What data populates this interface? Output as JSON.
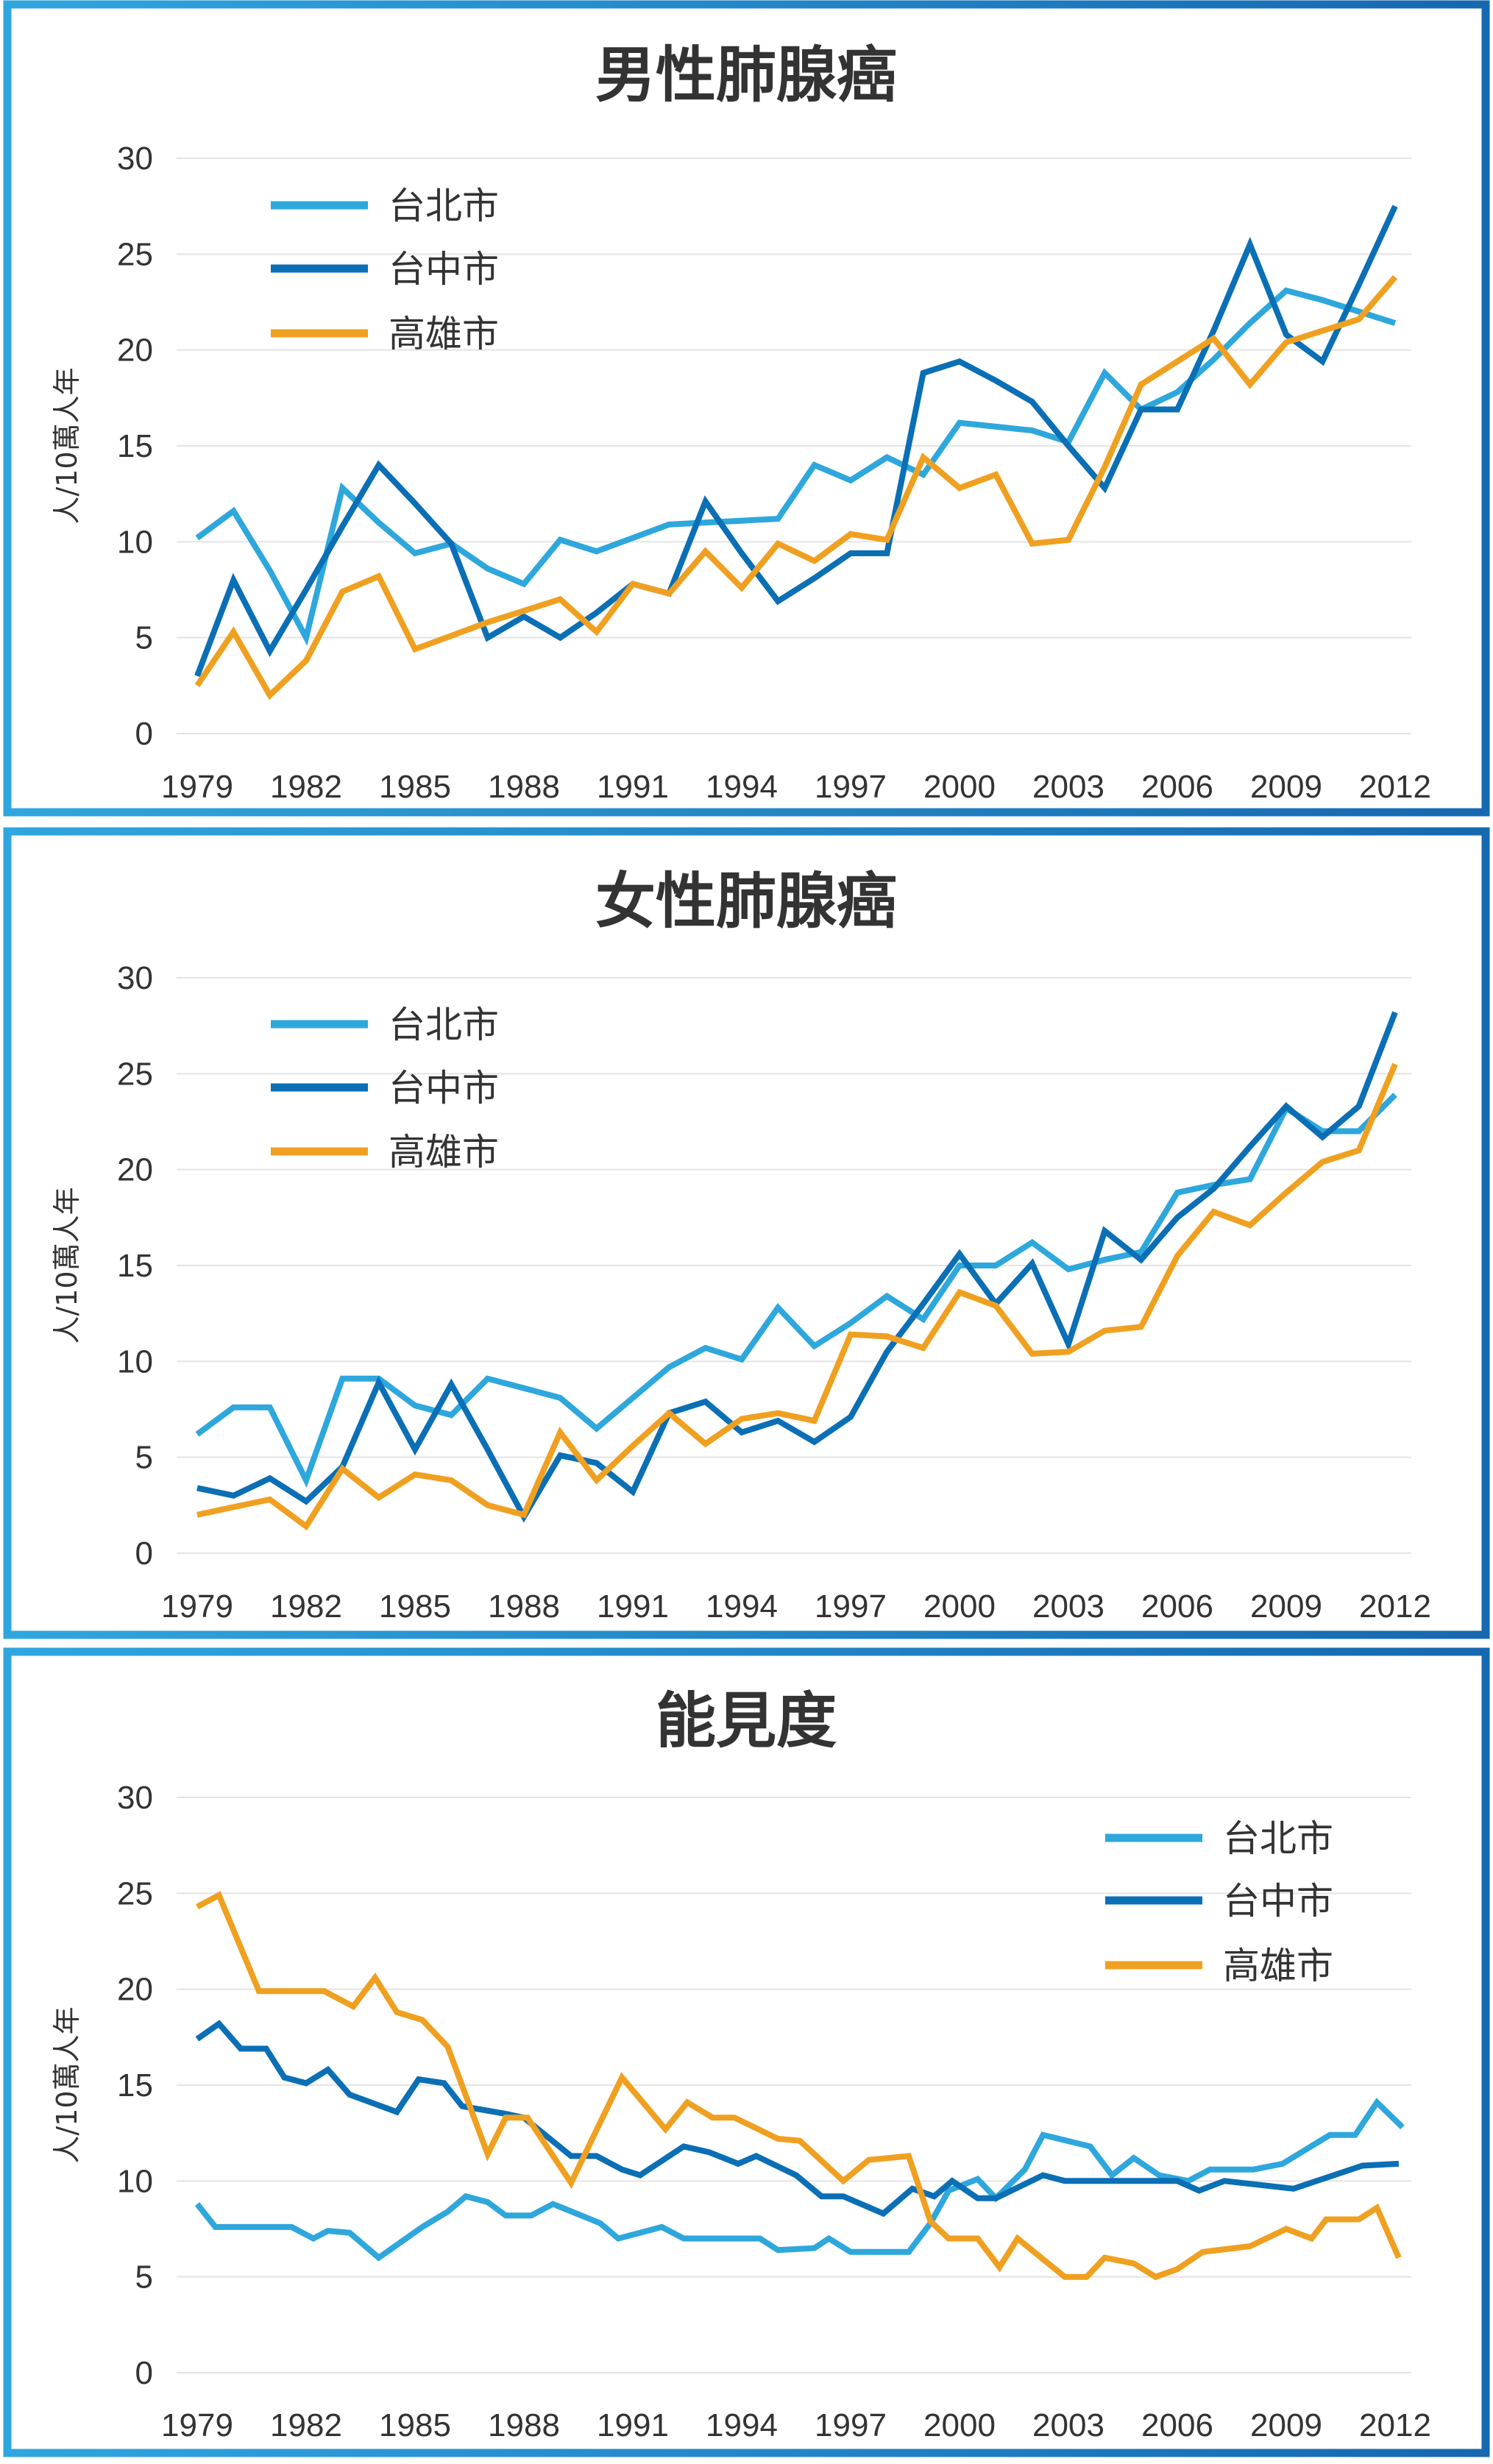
{
  "colors": {
    "taipei": "#2ea7dc",
    "taichung": "#0a6fb5",
    "kaohsiung": "#f0a020",
    "border_left": "#2fa6df",
    "border_right": "#1668b0"
  },
  "chart_data": [
    {
      "type": "line",
      "title": "男性肺腺癌",
      "ylabel": "人/10萬人年",
      "xlabel": "",
      "ylim": [
        0,
        30
      ],
      "yticks": [
        "0",
        "5",
        "10",
        "15",
        "20",
        "25",
        "30"
      ],
      "xticks": [
        "1979",
        "1982",
        "1985",
        "1988",
        "1991",
        "1994",
        "1997",
        "2000",
        "2003",
        "2006",
        "2009",
        "2012"
      ],
      "xlim": [
        1979,
        2012
      ],
      "grid": true,
      "legend": "top-left",
      "x": [
        1979,
        1980,
        1981,
        1982,
        1983,
        1984,
        1985,
        1986,
        1987,
        1988,
        1989,
        1990,
        1991,
        1992,
        1993,
        1994,
        1995,
        1996,
        1997,
        1998,
        1999,
        2000,
        2001,
        2002,
        2003,
        2004,
        2005,
        2006,
        2007,
        2008,
        2009,
        2010,
        2011,
        2012
      ],
      "series": [
        {
          "name": "台北市",
          "color": "#2ea7dc",
          "values": [
            10.2,
            11.6,
            8.5,
            5.0,
            12.8,
            11.0,
            9.4,
            9.9,
            8.6,
            7.8,
            10.1,
            9.5,
            10.2,
            10.9,
            11.0,
            11.1,
            11.2,
            14.0,
            13.2,
            14.4,
            13.5,
            16.2,
            16.0,
            15.8,
            15.2,
            18.8,
            16.9,
            17.8,
            19.5,
            21.4,
            23.1,
            22.6,
            22.0,
            21.4
          ]
        },
        {
          "name": "台中市",
          "color": "#0a6fb5",
          "values": [
            3.0,
            8.0,
            4.3,
            7.5,
            10.8,
            14.0,
            12.0,
            9.9,
            5.0,
            6.1,
            5.0,
            6.3,
            7.8,
            7.3,
            12.1,
            9.4,
            6.9,
            8.1,
            9.4,
            9.4,
            18.8,
            19.4,
            18.4,
            17.3,
            15.0,
            12.8,
            16.9,
            16.9,
            21.0,
            25.5,
            20.8,
            19.4,
            23.4,
            27.5
          ]
        },
        {
          "name": "高雄市",
          "color": "#f0a020",
          "values": [
            2.5,
            5.3,
            2.0,
            3.8,
            7.4,
            8.2,
            4.4,
            5.1,
            5.8,
            6.4,
            7.0,
            5.3,
            7.8,
            7.3,
            9.5,
            7.6,
            9.9,
            9.0,
            10.4,
            10.1,
            14.4,
            12.8,
            13.5,
            9.9,
            10.1,
            13.9,
            18.2,
            19.4,
            20.6,
            18.2,
            20.4,
            21.0,
            21.6,
            23.8
          ]
        }
      ]
    },
    {
      "type": "line",
      "title": "女性肺腺癌",
      "ylabel": "人/10萬人年",
      "xlabel": "",
      "ylim": [
        0,
        30
      ],
      "yticks": [
        "0",
        "5",
        "10",
        "15",
        "20",
        "25",
        "30"
      ],
      "xticks": [
        "1979",
        "1982",
        "1985",
        "1988",
        "1991",
        "1994",
        "1997",
        "2000",
        "2003",
        "2006",
        "2009",
        "2012"
      ],
      "xlim": [
        1979,
        2012
      ],
      "grid": true,
      "legend": "top-left",
      "x": [
        1979,
        1980,
        1981,
        1982,
        1983,
        1984,
        1985,
        1986,
        1987,
        1988,
        1989,
        1990,
        1991,
        1992,
        1993,
        1994,
        1995,
        1996,
        1997,
        1998,
        1999,
        2000,
        2001,
        2002,
        2003,
        2004,
        2005,
        2006,
        2007,
        2008,
        2009,
        2010,
        2011,
        2012
      ],
      "series": [
        {
          "name": "台北市",
          "color": "#2ea7dc",
          "values": [
            6.2,
            7.6,
            7.6,
            3.8,
            9.1,
            9.1,
            7.7,
            7.2,
            9.1,
            8.6,
            8.1,
            6.5,
            8.1,
            9.7,
            10.7,
            10.1,
            12.8,
            10.8,
            12.0,
            13.4,
            12.2,
            15.0,
            15.0,
            16.2,
            14.8,
            15.3,
            15.7,
            18.8,
            19.2,
            19.5,
            23.2,
            22.0,
            22.0,
            23.9
          ]
        },
        {
          "name": "台中市",
          "color": "#0a6fb5",
          "values": [
            3.4,
            3.0,
            3.9,
            2.7,
            4.5,
            8.9,
            5.4,
            8.8,
            5.4,
            1.9,
            5.1,
            4.7,
            3.2,
            7.3,
            7.9,
            6.3,
            6.9,
            5.8,
            7.1,
            10.5,
            13.0,
            15.6,
            13.0,
            15.1,
            10.9,
            16.8,
            15.3,
            17.5,
            19.0,
            21.2,
            23.3,
            21.7,
            23.3,
            28.2
          ]
        },
        {
          "name": "高雄市",
          "color": "#f0a020",
          "values": [
            2.0,
            2.4,
            2.8,
            1.4,
            4.4,
            2.9,
            4.1,
            3.8,
            2.5,
            2.0,
            6.3,
            3.8,
            5.6,
            7.3,
            5.7,
            7.0,
            7.3,
            6.9,
            11.4,
            11.3,
            10.7,
            13.6,
            12.9,
            10.4,
            10.5,
            11.6,
            11.8,
            15.5,
            17.8,
            17.1,
            18.8,
            20.4,
            21.0,
            25.5
          ]
        }
      ]
    },
    {
      "type": "line",
      "title": "能見度",
      "ylabel": "人/10萬人年",
      "xlabel": "",
      "ylim": [
        0,
        30
      ],
      "yticks": [
        "0",
        "5",
        "10",
        "15",
        "20",
        "25",
        "30"
      ],
      "xticks": [
        "1979",
        "1982",
        "1985",
        "1988",
        "1991",
        "1994",
        "1997",
        "2000",
        "2003",
        "2006",
        "2009",
        "2012"
      ],
      "xlim": [
        1979,
        2012
      ],
      "grid": true,
      "legend": "top-right",
      "series": [
        {
          "name": "台北市",
          "color": "#2ea7dc",
          "x": [
            1979.0,
            1979.5,
            1981.6,
            1982.2,
            1982.6,
            1983.2,
            1984.0,
            1985.2,
            1985.9,
            1986.4,
            1987.0,
            1987.5,
            1988.2,
            1988.8,
            1990.1,
            1990.6,
            1991.8,
            1992.4,
            1994.5,
            1995.0,
            1996.0,
            1996.4,
            1997.0,
            1998.6,
            1999.2,
            1999.7,
            2000.5,
            2001.0,
            2001.8,
            2002.3,
            2003.6,
            2004.2,
            2004.8,
            2005.5,
            2006.3,
            2006.9,
            2008.1,
            2008.9,
            2010.2,
            2010.9,
            2011.5,
            2012.2
          ],
          "values": [
            8.8,
            7.6,
            7.6,
            7.0,
            7.4,
            7.3,
            6.0,
            7.6,
            8.4,
            9.2,
            8.9,
            8.2,
            8.2,
            8.8,
            7.8,
            7.0,
            7.6,
            7.0,
            7.0,
            6.4,
            6.5,
            7.0,
            6.3,
            6.3,
            7.8,
            9.5,
            10.1,
            9.1,
            10.6,
            12.4,
            11.8,
            10.3,
            11.2,
            10.3,
            10.0,
            10.6,
            10.6,
            10.9,
            12.4,
            12.4,
            14.1,
            12.8
          ]
        },
        {
          "name": "台中市",
          "color": "#0a6fb5",
          "x": [
            1979.0,
            1979.6,
            1980.2,
            1980.9,
            1981.4,
            1982.0,
            1982.6,
            1983.2,
            1984.5,
            1985.1,
            1985.8,
            1986.3,
            1987.5,
            1988.0,
            1989.3,
            1990.0,
            1990.7,
            1991.2,
            1992.4,
            1993.1,
            1993.9,
            1994.4,
            1995.5,
            1996.2,
            1996.8,
            1997.9,
            1998.7,
            1999.3,
            1999.8,
            2000.5,
            2001.0,
            2002.3,
            2002.9,
            2006.0,
            2006.6,
            2007.3,
            2009.2,
            2011.1,
            2012.1
          ],
          "values": [
            17.4,
            18.2,
            16.9,
            16.9,
            15.4,
            15.1,
            15.8,
            14.5,
            13.6,
            15.3,
            15.1,
            13.9,
            13.5,
            13.3,
            11.3,
            11.3,
            10.6,
            10.3,
            11.8,
            11.5,
            10.9,
            11.3,
            10.3,
            9.2,
            9.2,
            8.3,
            9.6,
            9.2,
            10.0,
            9.1,
            9.1,
            10.3,
            10.0,
            10.0,
            9.5,
            10.0,
            9.6,
            10.8,
            10.9
          ]
        },
        {
          "name": "高雄市",
          "color": "#f0a020",
          "x": [
            1979.0,
            1979.6,
            1980.7,
            1982.5,
            1983.3,
            1983.9,
            1984.5,
            1985.2,
            1985.9,
            1987.0,
            1987.5,
            1988.1,
            1989.3,
            1990.7,
            1991.9,
            1992.5,
            1993.2,
            1993.8,
            1995.0,
            1995.6,
            1996.8,
            1997.5,
            1998.6,
            1999.2,
            1999.7,
            2000.5,
            2001.1,
            2001.6,
            2002.9,
            2003.5,
            2004.0,
            2004.8,
            2005.4,
            2006.0,
            2006.7,
            2008.0,
            2009.0,
            2009.7,
            2010.1,
            2011.0,
            2011.5,
            2012.1
          ],
          "values": [
            24.3,
            24.9,
            19.9,
            19.9,
            19.1,
            20.6,
            18.8,
            18.4,
            17.0,
            11.4,
            13.3,
            13.3,
            9.9,
            15.4,
            12.7,
            14.1,
            13.3,
            13.3,
            12.2,
            12.1,
            10.0,
            11.1,
            11.3,
            7.9,
            7.0,
            7.0,
            5.5,
            7.0,
            5.0,
            5.0,
            6.0,
            5.7,
            5.0,
            5.4,
            6.3,
            6.6,
            7.5,
            7.0,
            8.0,
            8.0,
            8.6,
            6.0
          ]
        }
      ]
    }
  ]
}
